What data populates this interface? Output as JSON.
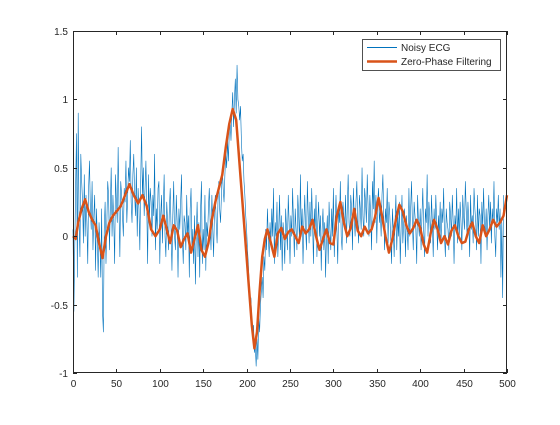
{
  "chart_data": {
    "type": "line",
    "title": "",
    "xlabel": "",
    "ylabel": "",
    "xlim": [
      0,
      500
    ],
    "ylim": [
      -1,
      1.5
    ],
    "xticks": [
      0,
      50,
      100,
      150,
      200,
      250,
      300,
      350,
      400,
      450,
      500
    ],
    "yticks": [
      -1,
      -0.5,
      0,
      0.5,
      1,
      1.5
    ],
    "xtick_labels": [
      "0",
      "50",
      "100",
      "150",
      "200",
      "250",
      "300",
      "350",
      "400",
      "450",
      "500"
    ],
    "ytick_labels": [
      "-1",
      "-0.5",
      "0",
      "0.5",
      "1",
      "1.5"
    ],
    "grid": false,
    "legend_position": "top-right",
    "legend_box": true,
    "series": [
      {
        "name": "Noisy ECG",
        "color": "#0072BD",
        "line_width": 0.6,
        "x_start": 0,
        "x_step": 1,
        "y": [
          0.05,
          -0.55,
          -0.1,
          0.35,
          0.75,
          -0.3,
          0.9,
          0.1,
          -0.15,
          0.6,
          0.4,
          0.25,
          -0.05,
          0.45,
          0.0,
          0.3,
          0.1,
          -0.2,
          0.35,
          0.55,
          0.2,
          0.05,
          0.4,
          -0.1,
          0.15,
          0.3,
          -0.25,
          0.2,
          0.0,
          -0.3,
          0.1,
          -0.05,
          -0.3,
          0.2,
          -0.55,
          -0.7,
          0.05,
          0.25,
          -0.2,
          0.1,
          0.4,
          0.3,
          -0.1,
          0.2,
          0.5,
          0.0,
          0.3,
          0.1,
          -0.2,
          0.45,
          0.25,
          0.1,
          0.65,
          0.2,
          -0.15,
          0.4,
          0.3,
          0.15,
          0.0,
          0.35,
          0.25,
          0.55,
          0.1,
          0.3,
          0.5,
          0.4,
          0.7,
          0.25,
          0.1,
          0.45,
          0.6,
          0.3,
          0.15,
          0.5,
          0.0,
          0.35,
          0.2,
          -0.1,
          0.4,
          0.8,
          0.3,
          0.5,
          0.15,
          0.35,
          0.55,
          0.2,
          -0.2,
          0.45,
          0.1,
          0.35,
          0.25,
          0.0,
          0.3,
          0.15,
          0.6,
          -0.1,
          0.2,
          0.05,
          0.35,
          0.4,
          -0.2,
          0.15,
          0.3,
          -0.05,
          0.2,
          0.45,
          0.0,
          -0.15,
          0.25,
          0.1,
          -0.1,
          0.2,
          0.35,
          0.05,
          -0.25,
          0.15,
          0.4,
          0.0,
          -0.1,
          0.3,
          0.1,
          -0.3,
          0.2,
          0.05,
          0.25,
          0.45,
          0.0,
          -0.2,
          0.15,
          0.1,
          -0.1,
          0.3,
          0.0,
          0.15,
          -0.3,
          0.2,
          0.35,
          -0.1,
          0.05,
          -0.2,
          0.15,
          -0.35,
          0.0,
          0.25,
          -0.15,
          0.1,
          -0.3,
          0.2,
          0.4,
          -0.2,
          0.05,
          -0.1,
          0.3,
          -0.25,
          0.1,
          0.0,
          0.2,
          0.35,
          0.1,
          -0.1,
          0.3,
          0.05,
          -0.15,
          0.2,
          0.3,
          0.1,
          -0.05,
          0.25,
          0.4,
          0.2,
          0.1,
          0.3,
          0.5,
          0.35,
          0.25,
          0.45,
          0.6,
          0.5,
          0.7,
          0.55,
          0.75,
          0.85,
          0.7,
          0.9,
          1.05,
          0.8,
          1.0,
          1.15,
          0.9,
          1.25,
          1.0,
          0.95,
          0.85,
          0.95,
          0.7,
          0.55,
          0.6,
          0.4,
          0.3,
          0.15,
          0.05,
          -0.1,
          -0.2,
          -0.35,
          -0.5,
          -0.45,
          -0.6,
          -0.7,
          -0.65,
          -0.85,
          -0.8,
          -0.95,
          -0.75,
          -0.9,
          -0.6,
          -0.7,
          -0.5,
          -0.4,
          -0.3,
          -0.45,
          -0.15,
          -0.25,
          0.05,
          -0.1,
          0.2,
          0.0,
          -0.15,
          0.1,
          -0.05,
          0.2,
          0.0,
          0.35,
          -0.2,
          0.1,
          0.0,
          0.25,
          -0.15,
          0.05,
          0.3,
          -0.1,
          0.15,
          -0.25,
          0.1,
          0.0,
          -0.2,
          0.2,
          0.05,
          -0.1,
          0.3,
          0.1,
          -0.2,
          0.15,
          0.0,
          0.35,
          0.1,
          -0.15,
          0.2,
          0.05,
          -0.1,
          0.3,
          0.15,
          -0.05,
          0.45,
          0.0,
          0.2,
          -0.2,
          0.1,
          0.3,
          0.05,
          -0.1,
          0.4,
          0.15,
          -0.05,
          0.25,
          0.0,
          0.35,
          0.1,
          -0.2,
          0.2,
          0.05,
          0.3,
          -0.15,
          0.1,
          0.25,
          0.0,
          0.15,
          -0.25,
          0.05,
          0.2,
          -0.1,
          0.1,
          -0.3,
          0.0,
          0.15,
          -0.2,
          0.25,
          0.05,
          -0.1,
          0.2,
          0.0,
          0.35,
          -0.15,
          0.1,
          0.3,
          0.05,
          -0.2,
          0.2,
          0.1,
          0.4,
          0.0,
          -0.1,
          0.25,
          0.15,
          0.05,
          0.3,
          -0.05,
          0.2,
          0.45,
          0.1,
          0.0,
          0.3,
          0.2,
          -0.1,
          0.35,
          0.15,
          0.0,
          0.25,
          0.4,
          0.1,
          -0.05,
          0.3,
          0.2,
          0.05,
          0.5,
          0.15,
          0.0,
          0.35,
          0.25,
          0.1,
          0.45,
          0.2,
          0.0,
          0.3,
          0.15,
          -0.1,
          0.4,
          0.2,
          0.55,
          0.1,
          0.3,
          -0.05,
          0.25,
          0.35,
          0.1,
          0.2,
          0.0,
          0.3,
          0.45,
          0.15,
          -0.1,
          0.2,
          0.1,
          0.35,
          -0.05,
          0.25,
          0.15,
          0.0,
          -0.2,
          0.2,
          0.05,
          -0.15,
          0.1,
          0.3,
          -0.1,
          0.15,
          0.0,
          0.25,
          -0.2,
          0.05,
          0.3,
          -0.05,
          0.1,
          0.2,
          -0.15,
          0.15,
          0.05,
          -0.1,
          0.35,
          0.0,
          0.2,
          0.4,
          0.1,
          -0.1,
          0.25,
          0.15,
          0.05,
          -0.2,
          0.3,
          0.1,
          0.0,
          0.2,
          -0.1,
          0.15,
          0.35,
          0.05,
          -0.15,
          0.2,
          0.1,
          0.45,
          0.0,
          0.25,
          0.15,
          -0.05,
          0.3,
          0.1,
          -0.15,
          0.2,
          0.05,
          0.3,
          0.1,
          -0.1,
          0.15,
          0.0,
          0.25,
          -0.05,
          0.2,
          0.1,
          0.35,
          0.0,
          -0.15,
          0.2,
          0.1,
          0.05,
          -0.1,
          0.25,
          0.15,
          0.0,
          0.3,
          0.1,
          -0.2,
          0.15,
          0.05,
          0.35,
          -0.05,
          0.2,
          0.0,
          0.25,
          0.1,
          -0.1,
          0.3,
          0.15,
          0.05,
          0.4,
          0.2,
          0.0,
          0.25,
          0.1,
          -0.15,
          0.3,
          0.05,
          0.15,
          -0.05,
          0.35,
          0.2,
          0.1,
          -0.1,
          0.3,
          0.0,
          0.2,
          0.15,
          -0.2,
          0.25,
          0.05,
          0.35,
          0.1,
          0.0,
          0.2,
          -0.1,
          0.15,
          0.3,
          0.05,
          0.25,
          -0.05,
          0.2,
          0.1,
          0.4,
          0.0,
          -0.15,
          0.2,
          0.1,
          0.3,
          0.05,
          0.2,
          -0.3,
          0.1,
          -0.45,
          0.3
        ]
      },
      {
        "name": "Zero-Phase Filtering",
        "color": "#D95319",
        "line_width": 2.5,
        "x": [
          0,
          3,
          6,
          10,
          14,
          18,
          22,
          26,
          30,
          34,
          38,
          42,
          46,
          50,
          55,
          60,
          65,
          70,
          75,
          80,
          85,
          90,
          95,
          100,
          104,
          108,
          112,
          116,
          120,
          124,
          128,
          132,
          136,
          140,
          144,
          148,
          152,
          156,
          160,
          164,
          168,
          172,
          176,
          180,
          184,
          188,
          191,
          194,
          197,
          200,
          203,
          206,
          209,
          212,
          215,
          218,
          221,
          224,
          228,
          232,
          236,
          240,
          244,
          248,
          252,
          256,
          260,
          264,
          268,
          272,
          276,
          280,
          284,
          288,
          292,
          296,
          300,
          304,
          308,
          312,
          316,
          320,
          324,
          328,
          332,
          336,
          340,
          344,
          348,
          352,
          356,
          360,
          364,
          368,
          372,
          376,
          380,
          384,
          388,
          392,
          396,
          400,
          404,
          408,
          412,
          416,
          420,
          424,
          428,
          432,
          436,
          440,
          444,
          448,
          452,
          456,
          460,
          464,
          468,
          472,
          476,
          480,
          484,
          488,
          492,
          496,
          500
        ],
        "y": [
          0.0,
          -0.02,
          0.1,
          0.2,
          0.27,
          0.18,
          0.12,
          0.08,
          -0.05,
          -0.16,
          0.0,
          0.1,
          0.15,
          0.18,
          0.22,
          0.3,
          0.38,
          0.3,
          0.24,
          0.3,
          0.22,
          0.05,
          0.0,
          0.05,
          0.15,
          0.05,
          -0.05,
          0.08,
          0.04,
          -0.08,
          -0.02,
          0.02,
          -0.12,
          -0.02,
          0.08,
          -0.1,
          -0.15,
          -0.05,
          0.12,
          0.25,
          0.35,
          0.45,
          0.65,
          0.82,
          0.93,
          0.85,
          0.6,
          0.35,
          0.1,
          -0.15,
          -0.4,
          -0.65,
          -0.82,
          -0.7,
          -0.4,
          -0.15,
          -0.02,
          0.05,
          -0.05,
          -0.15,
          0.02,
          0.06,
          -0.02,
          0.03,
          0.05,
          0.0,
          -0.05,
          0.07,
          0.02,
          0.05,
          0.12,
          0.0,
          -0.1,
          -0.02,
          0.05,
          -0.05,
          -0.06,
          0.15,
          0.25,
          0.1,
          0.0,
          0.06,
          0.2,
          0.04,
          0.0,
          0.07,
          0.02,
          0.05,
          0.14,
          0.28,
          0.15,
          0.0,
          -0.12,
          -0.02,
          0.12,
          0.23,
          0.18,
          0.08,
          0.02,
          0.06,
          0.12,
          0.06,
          -0.06,
          -0.12,
          0.02,
          0.12,
          0.05,
          -0.05,
          0.0,
          -0.06,
          0.04,
          0.08,
          0.0,
          -0.05,
          -0.04,
          0.05,
          0.1,
          0.0,
          -0.05,
          0.08,
          0.0,
          0.05,
          0.12,
          0.07,
          0.1,
          0.15,
          0.3
        ]
      }
    ]
  }
}
